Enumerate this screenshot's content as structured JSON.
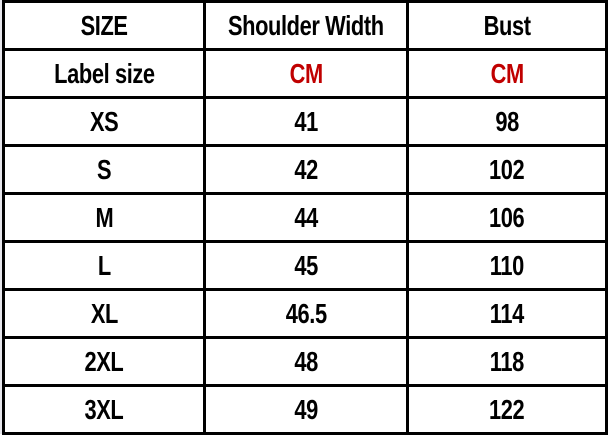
{
  "headers": [
    "SIZE",
    "Shoulder Width",
    "Bust"
  ],
  "units": {
    "label": "Label size",
    "shoulder": "CM",
    "bust": "CM"
  },
  "unit_color": "#c00000",
  "rows": [
    {
      "size": "XS",
      "shoulder": "41",
      "bust": "98"
    },
    {
      "size": "S",
      "shoulder": "42",
      "bust": "102"
    },
    {
      "size": "M",
      "shoulder": "44",
      "bust": "106"
    },
    {
      "size": "L",
      "shoulder": "45",
      "bust": "110"
    },
    {
      "size": "XL",
      "shoulder": "46.5",
      "bust": "114"
    },
    {
      "size": "2XL",
      "shoulder": "48",
      "bust": "118"
    },
    {
      "size": "3XL",
      "shoulder": "49",
      "bust": "122"
    }
  ]
}
